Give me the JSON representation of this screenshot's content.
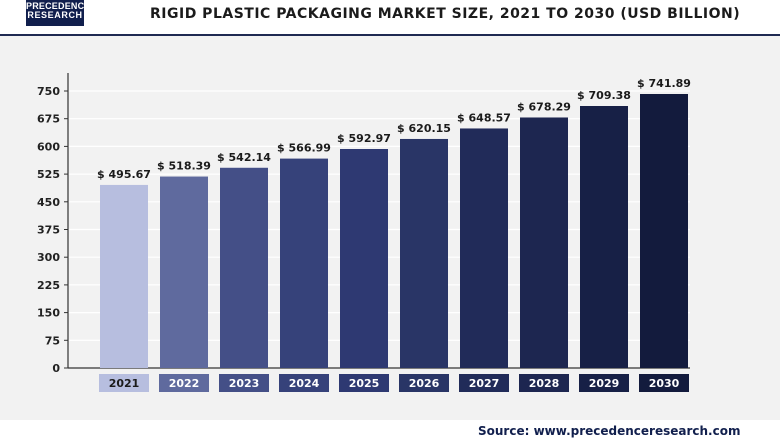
{
  "header": {
    "logo_line1": "PRECEDENCE",
    "logo_line2": "RESEARCH",
    "title": "RIGID PLASTIC PACKAGING MARKET SIZE, 2021 TO 2030 (USD BILLION)"
  },
  "source": "Source: www.precedenceresearch.com",
  "chart_data": {
    "type": "bar",
    "title": "RIGID PLASTIC PACKAGING MARKET SIZE, 2021 TO 2030 (USD BILLION)",
    "categories": [
      "2021",
      "2022",
      "2023",
      "2024",
      "2025",
      "2026",
      "2027",
      "2028",
      "2029",
      "2030"
    ],
    "values": [
      495.67,
      518.39,
      542.14,
      566.99,
      592.97,
      620.15,
      648.57,
      678.29,
      709.38,
      741.89
    ],
    "data_labels": [
      "$ 495.67",
      "$ 518.39",
      "$ 542.14",
      "$ 566.99",
      "$ 592.97",
      "$ 620.15",
      "$ 648.57",
      "$ 678.29",
      "$ 709.38",
      "$ 741.89"
    ],
    "yticks": [
      "0",
      "75",
      "150",
      "225",
      "300",
      "375",
      "450",
      "525",
      "600",
      "675",
      "750"
    ],
    "ylim": [
      0,
      750
    ],
    "grid": true,
    "colors": [
      "#b7bedf",
      "#5f6a9e",
      "#444f87",
      "#36427a",
      "#2e3972",
      "#293566",
      "#212b59",
      "#1d2650",
      "#172046",
      "#131b3d"
    ],
    "label_colors": [
      "#b7bedf",
      "#5f6a9e",
      "#444f87",
      "#36427a",
      "#2e3972",
      "#293566",
      "#212b59",
      "#1d2650",
      "#172046",
      "#131b3d"
    ],
    "xlabel": "",
    "ylabel": ""
  }
}
